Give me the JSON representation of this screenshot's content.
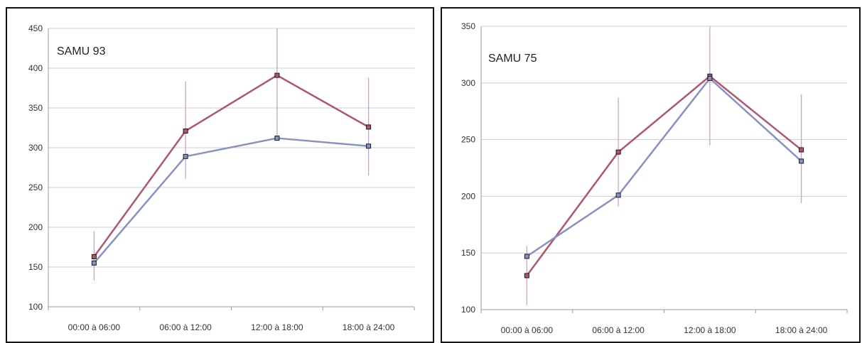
{
  "chart_data": [
    {
      "type": "line",
      "title": "SAMU 93",
      "xlabel": "",
      "ylabel": "",
      "categories": [
        "00:00 à 06:00",
        "06:00 à 12:00",
        "12:00 à 18:00",
        "18:00 à 24:00"
      ],
      "ylim": [
        100,
        450
      ],
      "yticks": [
        100,
        150,
        200,
        250,
        300,
        350,
        400,
        450
      ],
      "grid": true,
      "series": [
        {
          "color": "#b05570",
          "values": [
            163,
            321,
            391,
            326
          ]
        },
        {
          "color": "#8792c2",
          "values": [
            155,
            289,
            312,
            302
          ]
        }
      ],
      "error_bars": [
        {
          "low": 133,
          "high": 195
        },
        {
          "low": 261,
          "high": 383
        },
        {
          "low": 313,
          "high": 450
        },
        {
          "low": 265,
          "high": 388
        }
      ],
      "error_bar_color": "#c99ad0"
    },
    {
      "type": "line",
      "title": "SAMU 75",
      "xlabel": "",
      "ylabel": "",
      "categories": [
        "00:00 à 06:00",
        "06:00 à 12:00",
        "12:00 à 18:00",
        "18:00 à 24:00"
      ],
      "ylim": [
        100,
        350
      ],
      "yticks": [
        100,
        150,
        200,
        250,
        300,
        350
      ],
      "grid": true,
      "series": [
        {
          "color": "#b05570",
          "values": [
            130,
            239,
            306,
            241
          ]
        },
        {
          "color": "#8792c2",
          "values": [
            147,
            201,
            304,
            231
          ]
        }
      ],
      "error_bars": [
        {
          "low": 104,
          "high": 156
        },
        {
          "low": 191,
          "high": 287
        },
        {
          "low": 245,
          "high": 350
        },
        {
          "low": 194,
          "high": 290
        }
      ],
      "error_bar_color": "#c99ad0"
    }
  ]
}
